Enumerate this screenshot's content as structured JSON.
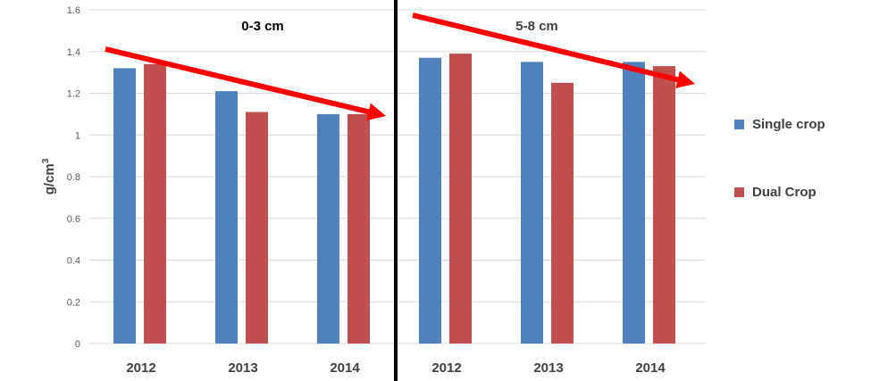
{
  "chart_data": {
    "type": "bar",
    "ylabel": "g/cm",
    "ylabel_sup": "3",
    "ylim": [
      0,
      1.6
    ],
    "yticks": [
      "0",
      "0.2",
      "0.4",
      "0.6",
      "0.8",
      "1",
      "1.2",
      "1.4",
      "1.6"
    ],
    "grid": true,
    "legend_position": "right",
    "series_colors": [
      "#4F81BD",
      "#C0504D"
    ],
    "arrow_color": "#FF0000",
    "panels": [
      {
        "title": "0-3 cm",
        "title_color": "#000000",
        "categories": [
          "2012",
          "2013",
          "2014"
        ],
        "series": [
          {
            "name": "Single crop",
            "values": [
              1.32,
              1.21,
              1.1
            ]
          },
          {
            "name": "Dual Crop",
            "values": [
              1.34,
              1.11,
              1.1
            ]
          }
        ]
      },
      {
        "title": "5-8 cm",
        "title_color": "#404040",
        "categories": [
          "2012",
          "2013",
          "2014"
        ],
        "series": [
          {
            "name": "Single crop",
            "values": [
              1.37,
              1.35,
              1.35
            ]
          },
          {
            "name": "Dual Crop",
            "values": [
              1.39,
              1.25,
              1.33
            ]
          }
        ]
      }
    ]
  }
}
